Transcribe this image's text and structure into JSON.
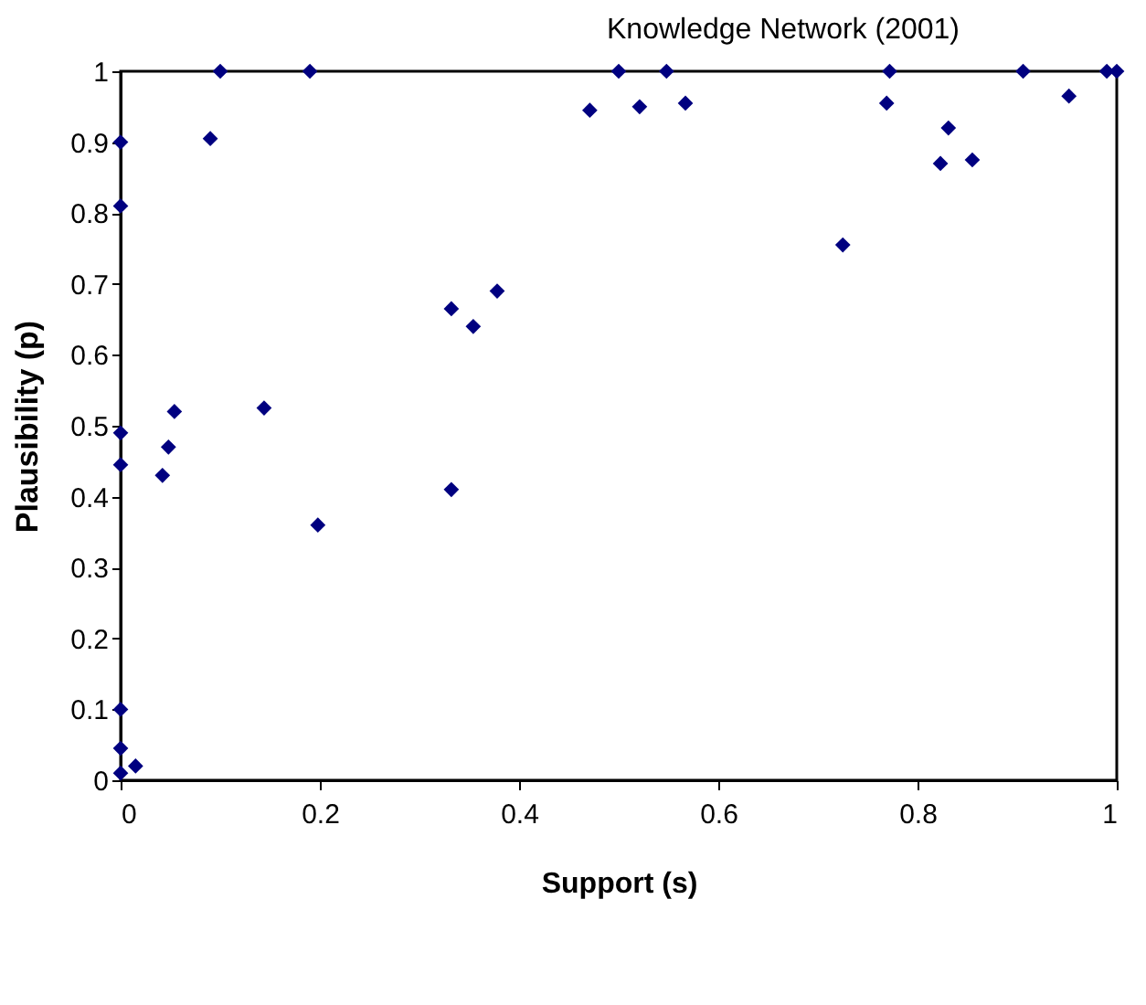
{
  "chart_data": {
    "type": "scatter",
    "title": "Knowledge Network  (2001)",
    "xlabel": "Support (s)",
    "ylabel": "Plausibility (p)",
    "x": [
      0,
      0,
      0,
      0,
      0,
      0,
      0,
      0.015,
      0.09,
      0.1,
      0.19,
      0.042,
      0.048,
      0.054,
      0.144,
      0.198,
      0.332,
      0.332,
      0.354,
      0.378,
      0.471,
      0.5,
      0.521,
      0.548,
      0.567,
      0.725,
      0.772,
      0.769,
      0.831,
      0.823,
      0.855,
      0.906,
      0.952,
      0.99,
      1
    ],
    "series": [
      {
        "color": "#000080",
        "values": [
          0.9,
          0.81,
          0.49,
          0.445,
          0.1,
          0.045,
          0.01,
          0.02,
          0.905,
          1,
          1,
          0.43,
          0.47,
          0.52,
          0.525,
          0.36,
          0.665,
          0.41,
          0.64,
          0.69,
          0.945,
          1,
          0.95,
          1,
          0.955,
          0.755,
          1,
          0.955,
          0.92,
          0.87,
          0.875,
          1,
          0.965,
          1,
          1
        ]
      }
    ],
    "xlim": [
      0,
      1
    ],
    "ylim": [
      0,
      1
    ],
    "xticks": [
      0,
      0.2,
      0.4,
      0.6,
      0.8,
      1
    ],
    "yticks": [
      0,
      0.1,
      0.2,
      0.3,
      0.4,
      0.5,
      0.6,
      0.7,
      0.8,
      0.9,
      1
    ],
    "grid": false,
    "marker": "diamond"
  }
}
